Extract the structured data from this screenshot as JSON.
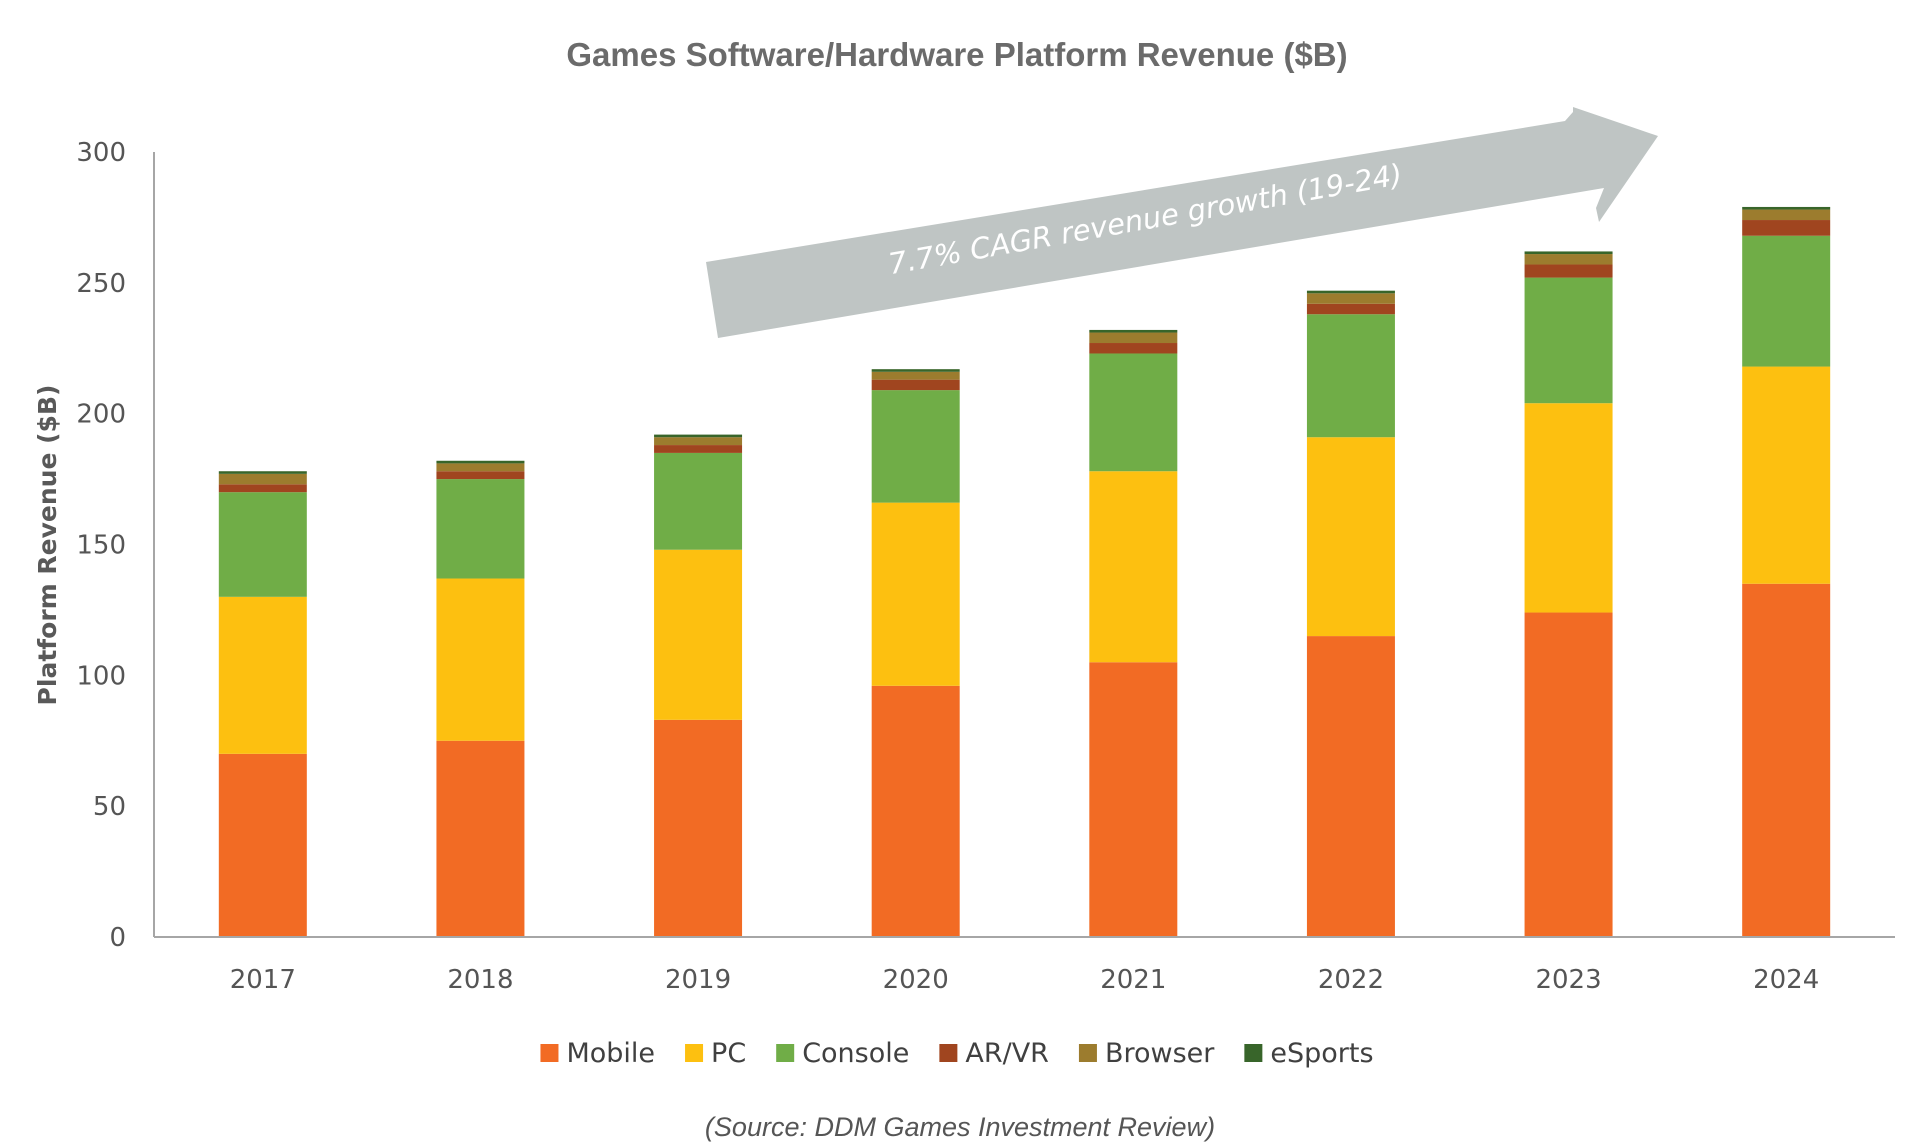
{
  "chart_data": {
    "type": "bar",
    "stacked": true,
    "title": "Games Software/Hardware Platform Revenue ($B)",
    "xlabel": "",
    "ylabel": "Platform Revenue ($B)",
    "ylim": [
      0,
      300
    ],
    "yticks": [
      0,
      50,
      100,
      150,
      200,
      250,
      300
    ],
    "grid": false,
    "legend_position": "bottom",
    "categories": [
      "2017",
      "2018",
      "2019",
      "2020",
      "2021",
      "2022",
      "2023",
      "2024"
    ],
    "series": [
      {
        "name": "Mobile",
        "color": "#F26B24",
        "values": [
          70,
          75,
          83,
          96,
          105,
          115,
          124,
          135
        ]
      },
      {
        "name": "PC",
        "color": "#FDC010",
        "values": [
          60,
          62,
          65,
          70,
          73,
          76,
          80,
          83
        ]
      },
      {
        "name": "Console",
        "color": "#70AD47",
        "values": [
          40,
          38,
          37,
          43,
          45,
          47,
          48,
          50
        ]
      },
      {
        "name": "AR/VR",
        "color": "#A0451F",
        "values": [
          3,
          3,
          3,
          4,
          4,
          4,
          5,
          6
        ]
      },
      {
        "name": "Browser",
        "color": "#9C7C2E",
        "values": [
          4,
          3,
          3,
          3,
          4,
          4,
          4,
          4
        ]
      },
      {
        "name": "eSports",
        "color": "#38652A",
        "values": [
          1,
          1,
          1,
          1,
          1,
          1,
          1,
          1
        ]
      }
    ],
    "annotation": "7.7% CAGR revenue growth (19-24)",
    "source": "(Source: DDM Games Investment Review)"
  }
}
